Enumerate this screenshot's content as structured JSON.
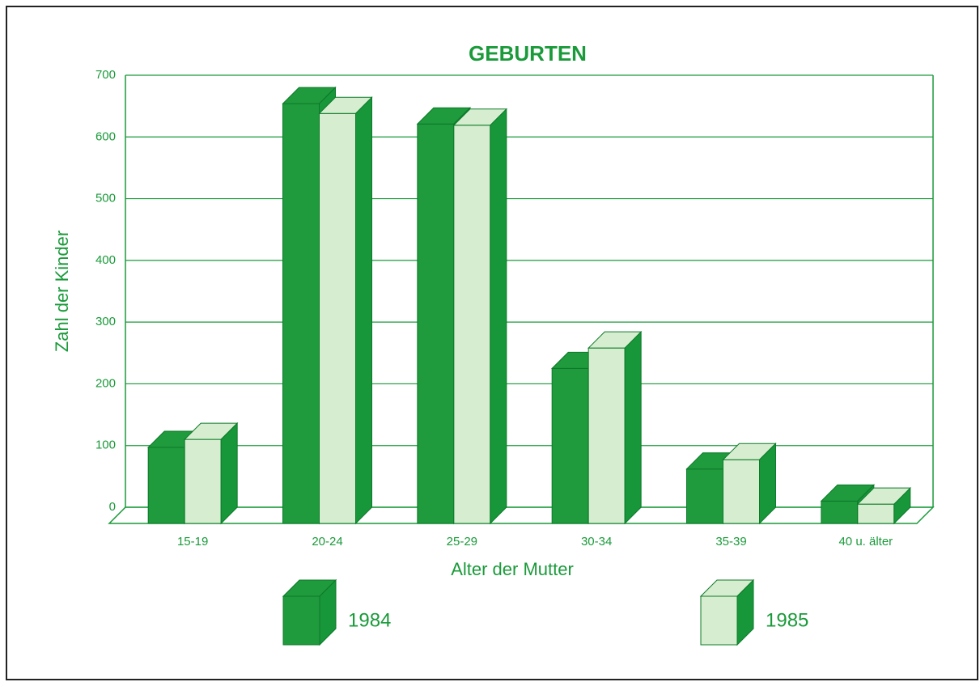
{
  "chart_data": {
    "type": "bar3d",
    "title": "GEBURTEN",
    "x_label": "Alter der Mutter",
    "y_label": "Zahl der Kinder",
    "categories": [
      "15-19",
      "20-24",
      "25-29",
      "30-34",
      "35-39",
      "40 u. älter"
    ],
    "series": [
      {
        "name": "1984",
        "color": "#1f9a3c",
        "values": [
          97,
          654,
          621,
          225,
          62,
          10
        ]
      },
      {
        "name": "1985",
        "color": "#d6eecf",
        "values": [
          110,
          638,
          619,
          258,
          77,
          5
        ]
      }
    ],
    "ylim": [
      0,
      700
    ],
    "yticks": [
      0,
      100,
      200,
      300,
      400,
      500,
      600,
      700
    ],
    "grid": true
  }
}
